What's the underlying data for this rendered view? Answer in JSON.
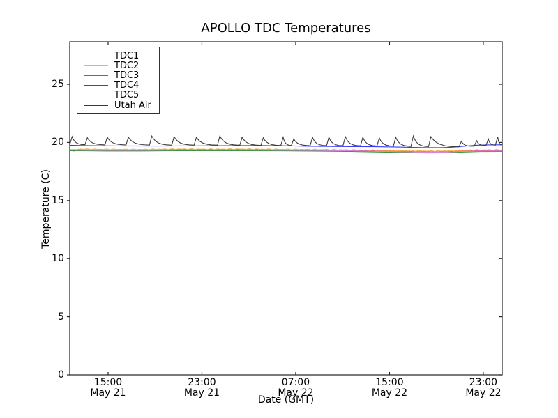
{
  "chart_data": {
    "type": "line",
    "title": "APOLLO TDC Temperatures",
    "xlabel": "Date (GMT)",
    "ylabel": "Temperature (C)",
    "grid": false,
    "legend_position": "upper left",
    "ylim": [
      0,
      28.66
    ],
    "yticks": [
      0,
      5,
      10,
      15,
      20,
      25
    ],
    "x_axis": {
      "unit": "hours_from_plot_start",
      "xlim": [
        0,
        36.88
      ],
      "ticks": [
        {
          "h": 3.27,
          "time": "15:00",
          "date": "May 21"
        },
        {
          "h": 11.27,
          "time": "23:00",
          "date": "May 21"
        },
        {
          "h": 19.27,
          "time": "07:00",
          "date": "May 22"
        },
        {
          "h": 27.27,
          "time": "15:00",
          "date": "May 22"
        },
        {
          "h": 35.27,
          "time": "23:00",
          "date": "May 22"
        }
      ]
    },
    "series": [
      {
        "name": "TDC1",
        "color": "#ef4444",
        "kind": "keyframes",
        "points": [
          [
            0,
            19.36
          ],
          [
            3,
            19.34
          ],
          [
            6,
            19.34
          ],
          [
            9,
            19.36
          ],
          [
            12,
            19.36
          ],
          [
            15,
            19.36
          ],
          [
            18,
            19.35
          ],
          [
            21,
            19.33
          ],
          [
            24,
            19.3
          ],
          [
            27,
            19.25
          ],
          [
            29,
            19.21
          ],
          [
            30.5,
            19.18
          ],
          [
            32,
            19.19
          ],
          [
            33.5,
            19.25
          ],
          [
            35,
            19.28
          ],
          [
            36.88,
            19.29
          ]
        ]
      },
      {
        "name": "TDC2",
        "color": "#ffab40",
        "kind": "keyframes",
        "noise": 0.035,
        "points": [
          [
            0,
            19.46
          ],
          [
            0.35,
            19.22
          ],
          [
            0.7,
            19.42
          ],
          [
            3,
            19.4
          ],
          [
            6,
            19.39
          ],
          [
            9,
            19.42
          ],
          [
            12,
            19.41
          ],
          [
            15,
            19.42
          ],
          [
            18,
            19.4
          ],
          [
            21,
            19.38
          ],
          [
            24,
            19.35
          ],
          [
            27,
            19.31
          ],
          [
            29,
            19.28
          ],
          [
            30.5,
            19.25
          ],
          [
            32,
            19.26
          ],
          [
            33.5,
            19.31
          ],
          [
            34.5,
            19.34
          ],
          [
            36.88,
            19.36
          ]
        ]
      },
      {
        "name": "TDC3",
        "color": "#2e9436",
        "kind": "keyframes",
        "points": [
          [
            0,
            19.28
          ],
          [
            3,
            19.26
          ],
          [
            6,
            19.26
          ],
          [
            9,
            19.28
          ],
          [
            12,
            19.28
          ],
          [
            15,
            19.28
          ],
          [
            18,
            19.27
          ],
          [
            21,
            19.25
          ],
          [
            24,
            19.22
          ],
          [
            27,
            19.16
          ],
          [
            29,
            19.12
          ],
          [
            30.5,
            19.09
          ],
          [
            32,
            19.1
          ],
          [
            33.5,
            19.17
          ],
          [
            35,
            19.21
          ],
          [
            36.88,
            19.22
          ]
        ]
      },
      {
        "name": "TDC4",
        "color": "#3b3bff",
        "kind": "keyframes",
        "points": [
          [
            0,
            19.76
          ],
          [
            2,
            19.72
          ],
          [
            4,
            19.7
          ],
          [
            7,
            19.69
          ],
          [
            10,
            19.7
          ],
          [
            13,
            19.72
          ],
          [
            16,
            19.74
          ],
          [
            18,
            19.72
          ],
          [
            20,
            19.68
          ],
          [
            23,
            19.65
          ],
          [
            26,
            19.63
          ],
          [
            28,
            19.6
          ],
          [
            30,
            19.56
          ],
          [
            31.5,
            19.55
          ],
          [
            32.5,
            19.58
          ],
          [
            33.5,
            19.66
          ],
          [
            34.5,
            19.75
          ],
          [
            35.5,
            19.79
          ],
          [
            36.88,
            19.8
          ]
        ]
      },
      {
        "name": "TDC5",
        "color": "#d389dd",
        "kind": "keyframes",
        "points": [
          [
            0,
            19.33
          ],
          [
            3,
            19.31
          ],
          [
            6,
            19.31
          ],
          [
            9,
            19.33
          ],
          [
            12,
            19.33
          ],
          [
            15,
            19.33
          ],
          [
            18,
            19.32
          ],
          [
            21,
            19.3
          ],
          [
            24,
            19.27
          ],
          [
            27,
            19.22
          ],
          [
            29,
            19.18
          ],
          [
            30.5,
            19.15
          ],
          [
            32,
            19.16
          ],
          [
            33.5,
            19.22
          ],
          [
            35,
            19.25
          ],
          [
            36.88,
            19.26
          ]
        ]
      },
      {
        "name": "Utah Air",
        "color": "#3a3a3a",
        "kind": "spiky",
        "rise_hours": 0.2,
        "decay_rate": 4.2,
        "baseline": [
          [
            0,
            19.8
          ],
          [
            4,
            19.78
          ],
          [
            8,
            19.76
          ],
          [
            12,
            19.76
          ],
          [
            16,
            19.74
          ],
          [
            20,
            19.72
          ],
          [
            24,
            19.7
          ],
          [
            27,
            19.68
          ],
          [
            29,
            19.65
          ],
          [
            31,
            19.62
          ],
          [
            33,
            19.6
          ],
          [
            34,
            19.64
          ],
          [
            35,
            19.72
          ],
          [
            36.88,
            19.78
          ]
        ],
        "spikes": [
          [
            0.2,
            20.5
          ],
          [
            1.5,
            20.4
          ],
          [
            3.2,
            20.45
          ],
          [
            5.0,
            20.45
          ],
          [
            7.0,
            20.55
          ],
          [
            8.9,
            20.5
          ],
          [
            10.8,
            20.45
          ],
          [
            12.8,
            20.55
          ],
          [
            14.7,
            20.45
          ],
          [
            16.5,
            20.4
          ],
          [
            18.2,
            20.45
          ],
          [
            19.1,
            20.3
          ],
          [
            20.7,
            20.45
          ],
          [
            22.1,
            20.45
          ],
          [
            23.5,
            20.5
          ],
          [
            25.0,
            20.45
          ],
          [
            26.4,
            20.4
          ],
          [
            27.8,
            20.45
          ],
          [
            29.3,
            20.55
          ],
          [
            30.8,
            20.5
          ],
          [
            33.4,
            20.1
          ],
          [
            34.7,
            20.15
          ],
          [
            35.7,
            20.3
          ],
          [
            36.5,
            20.5
          ]
        ]
      }
    ]
  }
}
